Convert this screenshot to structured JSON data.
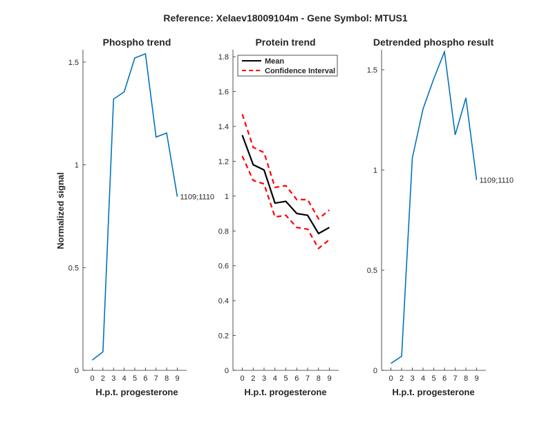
{
  "suptitle": "Reference:  Xelaev18009104m - Gene Symbol:  MTUS1",
  "colors": {
    "series": "#0072bd",
    "mean": "#000000",
    "ci": "#ff0000",
    "axis": "#262626"
  },
  "chart_data": [
    {
      "type": "line",
      "title": "Phospho trend",
      "xlabel": "H.p.t. progesterone",
      "ylabel": "Normalized signal",
      "categories": [
        "0",
        "2",
        "3",
        "4",
        "5",
        "6",
        "7",
        "8",
        "9"
      ],
      "ylim": [
        0,
        1.56
      ],
      "yticks": [
        0,
        0.5,
        1,
        1.5
      ],
      "ytick_labels": [
        "0",
        "0.5",
        "1",
        "1.5"
      ],
      "series": [
        {
          "values": [
            0.05,
            0.09,
            1.32,
            1.355,
            1.52,
            1.54,
            1.135,
            1.155,
            0.845
          ]
        }
      ],
      "annotation": "1109;1110"
    },
    {
      "type": "line",
      "title": "Protein trend",
      "xlabel": "H.p.t. progesterone",
      "categories": [
        "0",
        "2",
        "3",
        "4",
        "5",
        "6",
        "7",
        "8",
        "9"
      ],
      "ylim": [
        0,
        1.84
      ],
      "yticks": [
        0,
        0.2,
        0.4,
        0.6,
        0.8,
        1,
        1.2,
        1.4,
        1.6,
        1.8
      ],
      "ytick_labels": [
        "0",
        "0.2",
        "0.4",
        "0.6",
        "0.8",
        "1",
        "1.2",
        "1.4",
        "1.6",
        "1.8"
      ],
      "legend": "top-right",
      "series": [
        {
          "name": "Mean",
          "style": "solid",
          "values": [
            1.35,
            1.18,
            1.15,
            0.96,
            0.97,
            0.9,
            0.89,
            0.785,
            0.82
          ]
        },
        {
          "name": "Confidence Interval",
          "style": "dashed",
          "values": [
            1.47,
            1.28,
            1.25,
            1.05,
            1.06,
            0.98,
            0.98,
            0.87,
            0.92
          ]
        },
        {
          "style": "dashed",
          "values": [
            1.23,
            1.09,
            1.07,
            0.88,
            0.89,
            0.82,
            0.81,
            0.7,
            0.75
          ]
        }
      ]
    },
    {
      "type": "line",
      "title": "Detrended phospho result",
      "xlabel": "H.p.t. progesterone",
      "categories": [
        "0",
        "2",
        "3",
        "4",
        "5",
        "6",
        "7",
        "8",
        "9"
      ],
      "ylim": [
        0,
        1.6
      ],
      "yticks": [
        0,
        0.5,
        1,
        1.5
      ],
      "ytick_labels": [
        "0",
        "0.5",
        "1",
        "1.5"
      ],
      "series": [
        {
          "values": [
            0.035,
            0.07,
            1.06,
            1.305,
            1.455,
            1.59,
            1.175,
            1.36,
            0.95
          ]
        }
      ],
      "annotation": "1109;1110"
    }
  ]
}
